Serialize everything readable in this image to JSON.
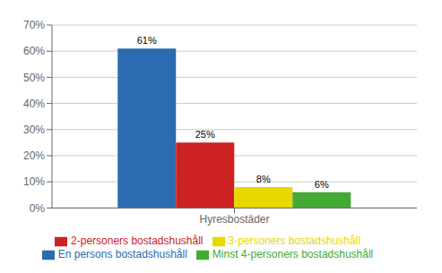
{
  "chart_data": {
    "type": "bar",
    "categories": [
      "Hyresbostäder"
    ],
    "series": [
      {
        "name": "En persons bostadshushåll",
        "color": "#2B6BB0",
        "values": [
          61
        ],
        "value_labels": [
          "61%"
        ]
      },
      {
        "name": "2-personers bostadshushåll",
        "color": "#CC2222",
        "values": [
          25
        ],
        "value_labels": [
          "25%"
        ]
      },
      {
        "name": "3-personers bostadshushåll",
        "color": "#E8D800",
        "values": [
          8
        ],
        "value_labels": [
          "8%"
        ]
      },
      {
        "name": "Minst 4-personers bostadshushåll",
        "color": "#44AA33",
        "values": [
          6
        ],
        "value_labels": [
          "6%"
        ]
      }
    ],
    "ylim": [
      0,
      70
    ],
    "yticks": [
      {
        "value": 0,
        "label": "0%"
      },
      {
        "value": 10,
        "label": "10%"
      },
      {
        "value": 20,
        "label": "20%"
      },
      {
        "value": 30,
        "label": "30%"
      },
      {
        "value": 40,
        "label": "40%"
      },
      {
        "value": 50,
        "label": "50%"
      },
      {
        "value": 60,
        "label": "60%"
      },
      {
        "value": 70,
        "label": "70%"
      }
    ],
    "grid": true,
    "data_labels": true,
    "legend": "bottom"
  }
}
